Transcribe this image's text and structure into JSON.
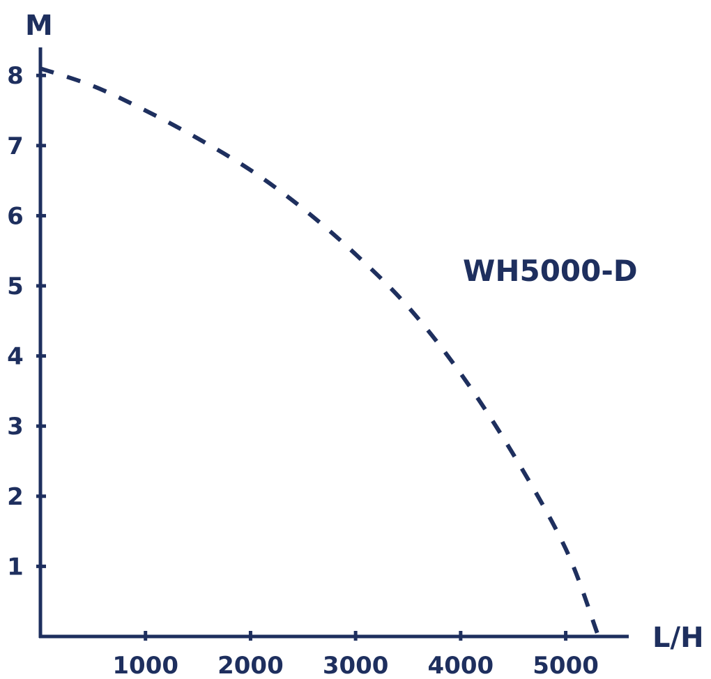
{
  "chart_data": {
    "type": "line",
    "title": "",
    "xlabel": "L/H",
    "ylabel": "M",
    "xlim": [
      0,
      5600
    ],
    "ylim": [
      0,
      8.4
    ],
    "x_ticks": [
      1000,
      2000,
      3000,
      4000,
      5000
    ],
    "y_ticks": [
      1,
      2,
      3,
      4,
      5,
      6,
      7,
      8
    ],
    "grid": false,
    "legend": "none",
    "line_style": "dashed",
    "color": "#1e2f5e",
    "series": [
      {
        "name": "WH5000-D",
        "x": [
          0,
          500,
          1000,
          1500,
          2000,
          2500,
          3000,
          3500,
          4000,
          4500,
          5000,
          5300
        ],
        "y": [
          8.1,
          7.85,
          7.5,
          7.1,
          6.65,
          6.1,
          5.45,
          4.7,
          3.75,
          2.6,
          1.25,
          0.05
        ]
      }
    ]
  }
}
